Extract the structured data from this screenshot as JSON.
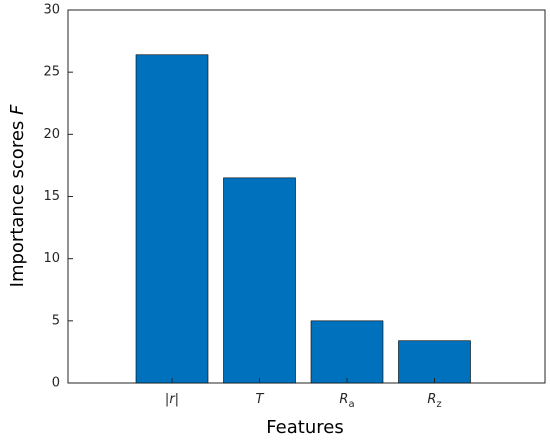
{
  "chart_data": {
    "type": "bar",
    "categories": [
      "|r|",
      "T",
      "Ra",
      "Rz"
    ],
    "values": [
      26.4,
      16.5,
      5.0,
      3.4
    ],
    "color": "#0072bd",
    "ylim": [
      0,
      30
    ],
    "yticks": [
      0,
      5,
      10,
      15,
      20,
      25,
      30
    ],
    "x_label": "Features",
    "y_label": "Importance scores F"
  }
}
